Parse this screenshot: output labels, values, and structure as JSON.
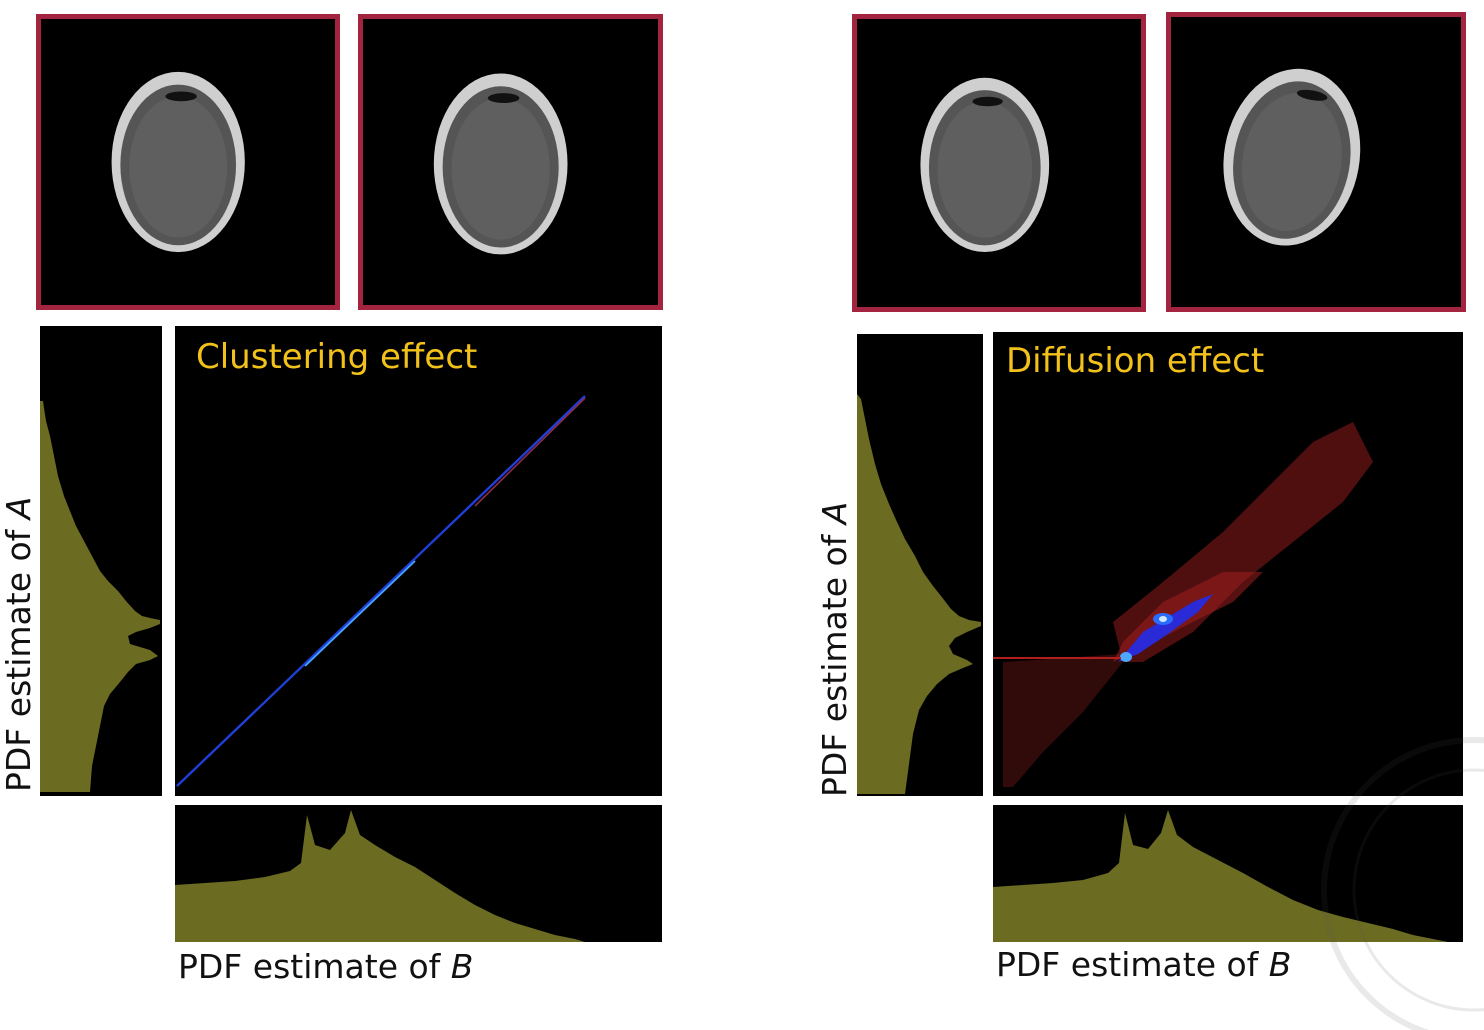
{
  "colors": {
    "frame_border": "#a3243f",
    "histogram_fill": "#6b6b22",
    "title_text": "#f2c21a",
    "joint_low": "#b01e1e",
    "joint_high": "#2a6cff"
  },
  "left": {
    "title": "Clustering effect",
    "ylabel_prefix": "PDF estimate of ",
    "ylabel_var": "A",
    "xlabel_prefix": "PDF estimate of ",
    "xlabel_var": "B"
  },
  "right": {
    "title": "Diffusion effect",
    "ylabel_prefix": "PDF estimate of ",
    "ylabel_var": "A",
    "xlabel_prefix": "PDF estimate of ",
    "xlabel_var": "B"
  }
}
